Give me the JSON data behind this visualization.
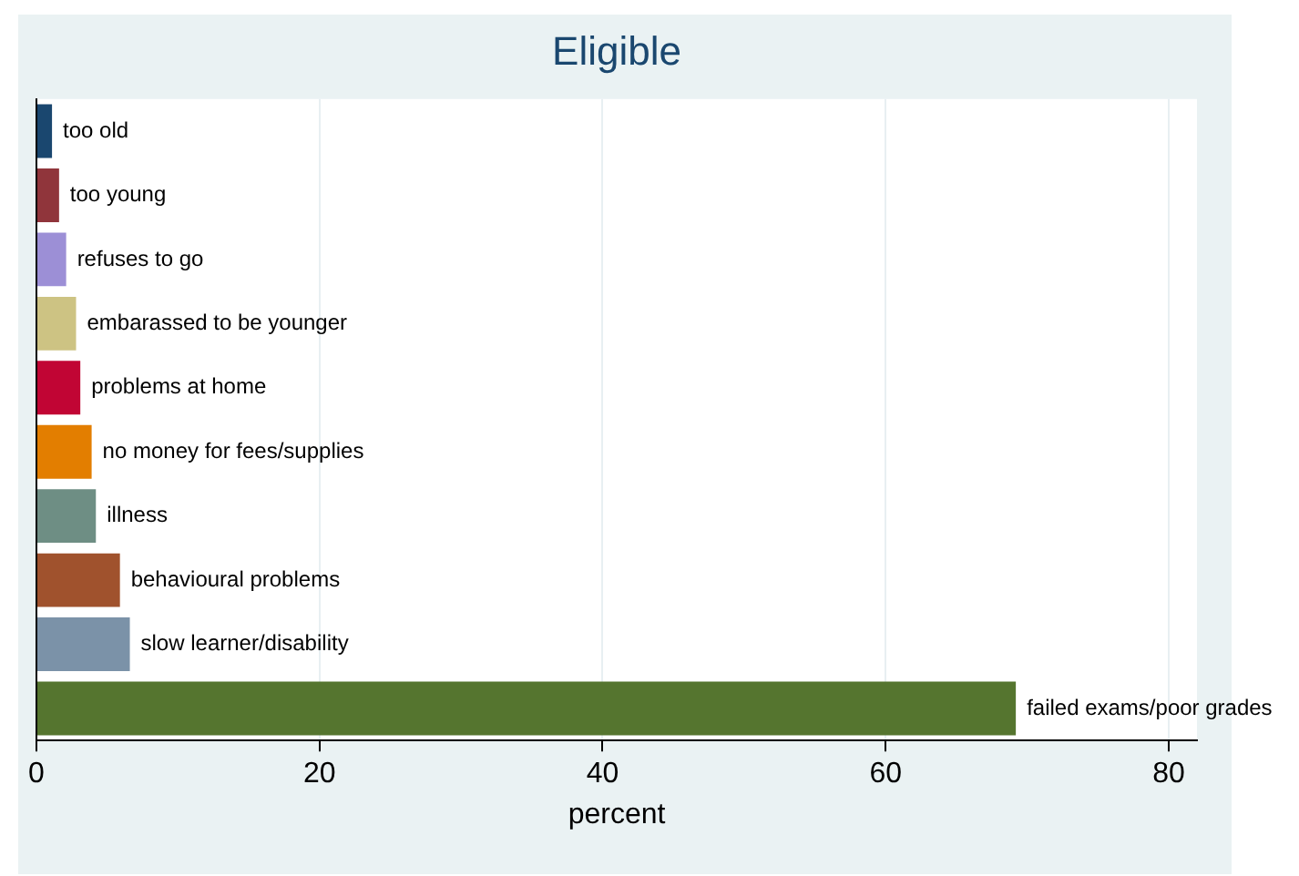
{
  "chart_data": {
    "type": "bar",
    "orientation": "horizontal",
    "title": "Eligible",
    "xlabel": "percent",
    "categories": [
      "too old",
      "too young",
      "refuses to go",
      "embarassed to be younger",
      "problems at home",
      "no money for fees/supplies",
      "illness",
      "behavioural problems",
      "slow learner/disability",
      "failed exams/poor grades"
    ],
    "values": [
      1.1,
      1.6,
      2.1,
      2.8,
      3.1,
      3.9,
      4.2,
      5.9,
      6.6,
      69.2
    ],
    "colors": [
      "#1a476f",
      "#90353b",
      "#9c8fd6",
      "#cdc383",
      "#c10534",
      "#e37e00",
      "#6e8e84",
      "#a0522d",
      "#7b92a8",
      "#55752f"
    ],
    "xlim": [
      0,
      82
    ],
    "xticks": [
      0,
      20,
      40,
      60,
      80
    ],
    "grid": "x",
    "legend": false,
    "tick_labels": "x"
  }
}
